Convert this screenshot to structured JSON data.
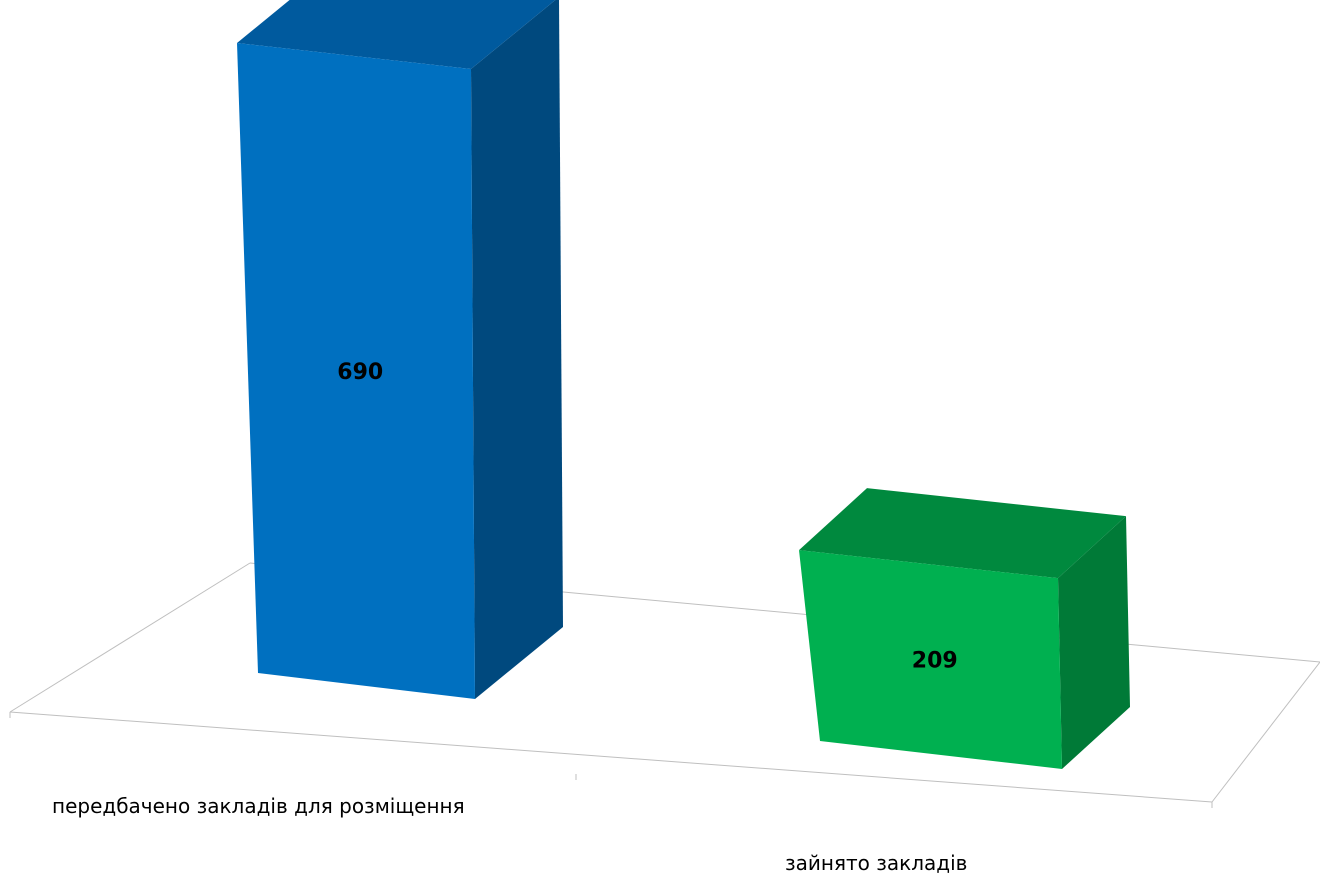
{
  "chart_data": {
    "type": "bar",
    "categories": [
      "передбачено закладів для розміщення",
      "зайнято закладів"
    ],
    "values": [
      690,
      209
    ],
    "title": "",
    "xlabel": "",
    "ylabel": "",
    "ylim": [
      0,
      690
    ],
    "grid": false,
    "legend": "none",
    "colors": [
      {
        "front": "#0070C0",
        "side": "#00497E",
        "top": "#005A9E"
      },
      {
        "front": "#00B050",
        "side": "#007A37",
        "top": "#00893E"
      }
    ]
  }
}
